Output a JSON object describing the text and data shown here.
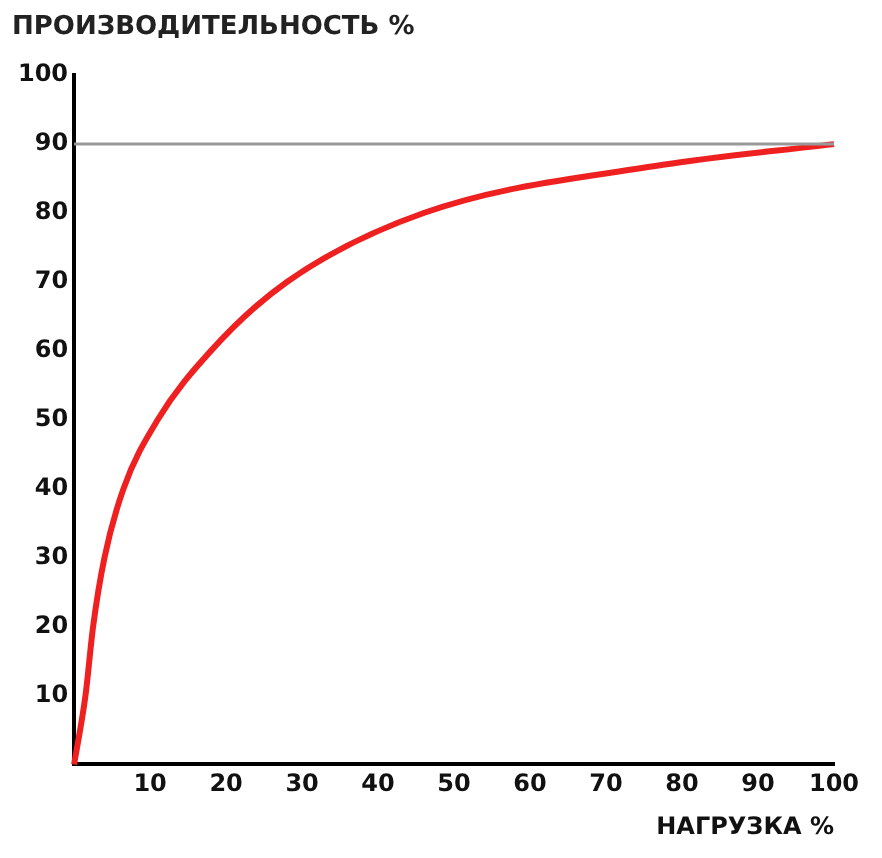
{
  "chart_data": {
    "type": "line",
    "title": "ПРОИЗВОДИТЕЛЬНОСТЬ %",
    "xlabel": "НАГРУЗКА %",
    "x": [
      0,
      1.5,
      2.5,
      4,
      6.5,
      11,
      18,
      28,
      46,
      77.5,
      100
    ],
    "series": [
      {
        "color": "#ee2020",
        "values": [
          0,
          10,
          20,
          30,
          40,
          50,
          60,
          70,
          80,
          87,
          90
        ]
      }
    ],
    "xlim": [
      0,
      100
    ],
    "xticks": [
      10,
      20,
      30,
      40,
      50,
      60,
      70,
      80,
      90,
      100
    ],
    "ylim": [
      0,
      100
    ],
    "yticks": [
      10,
      20,
      30,
      40,
      50,
      60,
      70,
      80,
      90,
      100
    ],
    "ref_lines": [
      {
        "axis": "y",
        "value": 90,
        "color": "#999999"
      }
    ],
    "grid": false,
    "legend": false,
    "marker": "none",
    "line_style": "solid"
  }
}
